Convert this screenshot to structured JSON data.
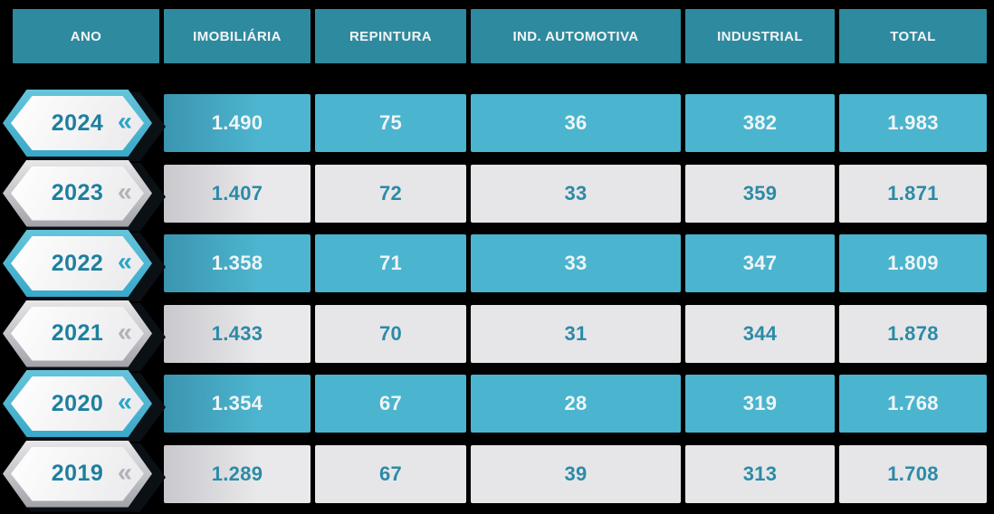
{
  "table": {
    "columns": [
      "ANO",
      "IMOBILIÁRIA",
      "REPINTURA",
      "IND. AUTOMOTIVA",
      "INDUSTRIAL",
      "TOTAL"
    ],
    "rows": [
      {
        "year": "2024",
        "style": "teal",
        "values": [
          "1.490",
          "75",
          "36",
          "382",
          "1.983"
        ]
      },
      {
        "year": "2023",
        "style": "gray",
        "values": [
          "1.407",
          "72",
          "33",
          "359",
          "1.871"
        ]
      },
      {
        "year": "2022",
        "style": "teal",
        "values": [
          "1.358",
          "71",
          "33",
          "347",
          "1.809"
        ]
      },
      {
        "year": "2021",
        "style": "gray",
        "values": [
          "1.433",
          "70",
          "31",
          "344",
          "1.878"
        ]
      },
      {
        "year": "2020",
        "style": "teal",
        "values": [
          "1.354",
          "67",
          "28",
          "319",
          "1.768"
        ]
      },
      {
        "year": "2019",
        "style": "gray",
        "values": [
          "1.289",
          "67",
          "39",
          "313",
          "1.708"
        ]
      }
    ]
  },
  "ui": {
    "chevron": "«"
  },
  "colors": {
    "header_teal": "#2e8a9e",
    "row_teal": "#4bb4ce",
    "row_gray": "#e6e6e8",
    "value_text_on_teal": "#eff5f7",
    "value_text_on_gray": "#2b8ba7",
    "year_text": "#1e7f9f",
    "badge_border_teal": "#39a8c9",
    "badge_border_silver": "#a1a2a8",
    "background": "#000000"
  },
  "chart_data": {
    "type": "table",
    "title": "",
    "columns": [
      "ANO",
      "IMOBILIÁRIA",
      "REPINTURA",
      "IND. AUTOMOTIVA",
      "INDUSTRIAL",
      "TOTAL"
    ],
    "rows": [
      {
        "ano": 2024,
        "imobiliaria": 1490,
        "repintura": 75,
        "ind_automotiva": 36,
        "industrial": 382,
        "total": 1983
      },
      {
        "ano": 2023,
        "imobiliaria": 1407,
        "repintura": 72,
        "ind_automotiva": 33,
        "industrial": 359,
        "total": 1871
      },
      {
        "ano": 2022,
        "imobiliaria": 1358,
        "repintura": 71,
        "ind_automotiva": 33,
        "industrial": 347,
        "total": 1809
      },
      {
        "ano": 2021,
        "imobiliaria": 1433,
        "repintura": 70,
        "ind_automotiva": 31,
        "industrial": 344,
        "total": 1878
      },
      {
        "ano": 2020,
        "imobiliaria": 1354,
        "repintura": 67,
        "ind_automotiva": 28,
        "industrial": 319,
        "total": 1768
      },
      {
        "ano": 2019,
        "imobiliaria": 1289,
        "repintura": 67,
        "ind_automotiva": 39,
        "industrial": 313,
        "total": 1708
      }
    ],
    "layout": {
      "number_format": "pt-BR thousands separator (.)",
      "striped": "teal/gray alternating by year"
    }
  }
}
